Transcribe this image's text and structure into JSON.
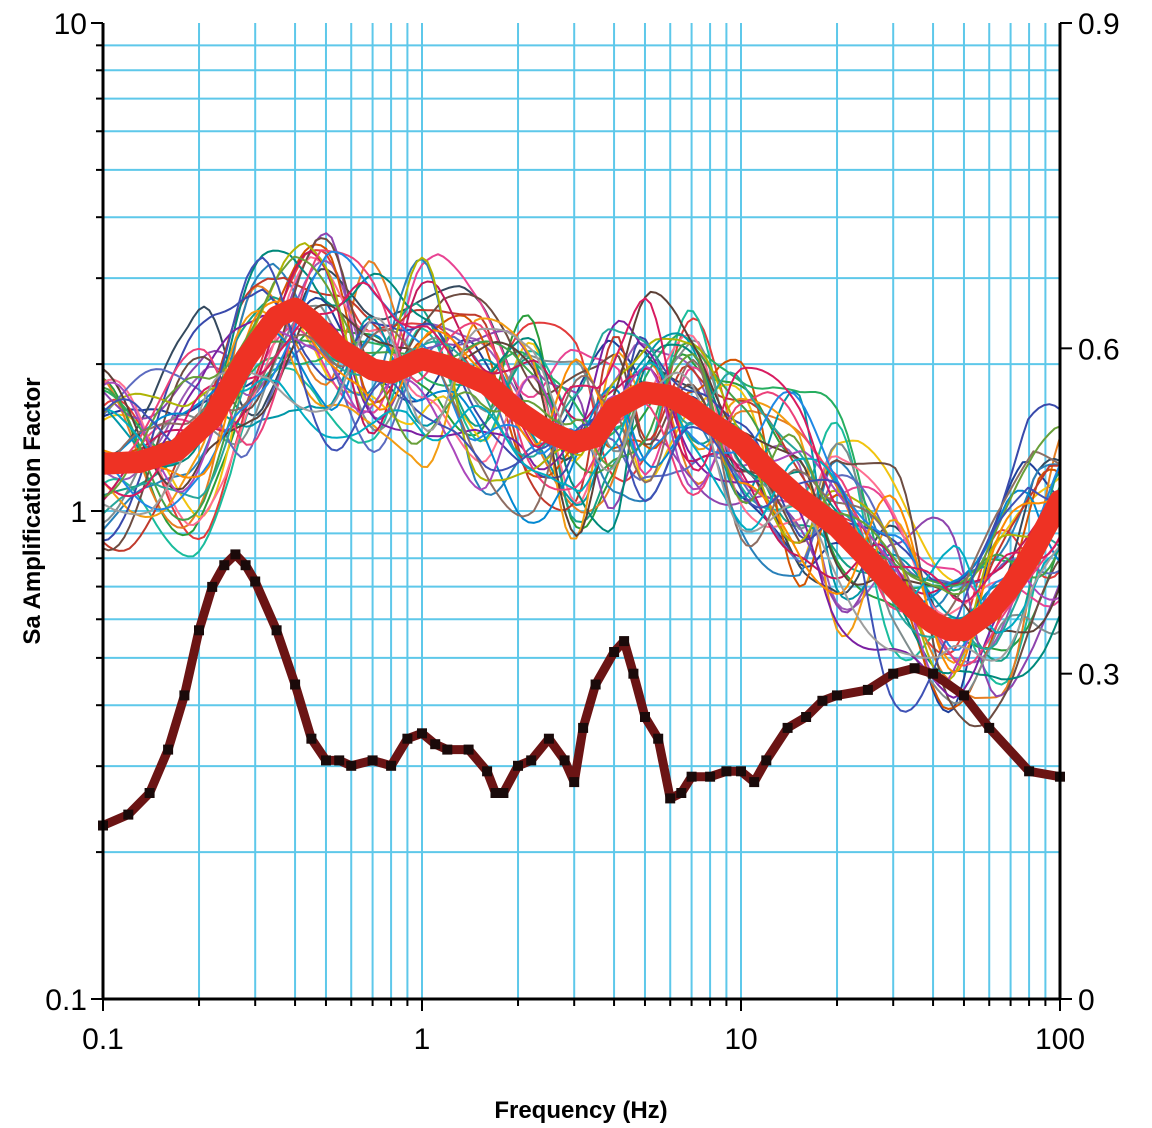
{
  "chart_data": {
    "type": "line",
    "title": "",
    "xlabel": "Frequency  (Hz)",
    "ylabel": "Sa Amplification  Factor",
    "x_scale": "log",
    "y_scale": "log",
    "xlim": [
      0.1,
      100
    ],
    "ylim": [
      0.1,
      10
    ],
    "y2lim": [
      0,
      0.9
    ],
    "grid": true,
    "legend": "none",
    "x_ticks": [
      "0.1",
      "1",
      "10",
      "100"
    ],
    "y_ticks": [
      "0.1",
      "1",
      "10"
    ],
    "y2_ticks": [
      "0",
      "0.3",
      "0.6",
      "0.9"
    ],
    "colors": {
      "grid": "#5ec8ea",
      "median": "#ee3224",
      "sigma": "#6b1414",
      "sigma_marker": "#1a0a0a",
      "axis": "#000000"
    },
    "individual_colors": [
      "#1f3f99",
      "#e23b3b",
      "#2a9d3a",
      "#9b59b6",
      "#f1c40f",
      "#1abc9c",
      "#e67e22",
      "#34495e",
      "#e84393",
      "#16a085",
      "#8e44ad",
      "#d35400",
      "#2980b9",
      "#27ae60",
      "#c0392b",
      "#7f8c8d",
      "#ff6f91",
      "#0097a7",
      "#6d4c41",
      "#5c6bc0",
      "#00897b",
      "#f39c12",
      "#3949ab",
      "#c2185b",
      "#43a047",
      "#7b1fa2",
      "#0288d1",
      "#aeb404",
      "#5d4037",
      "#ec407a",
      "#26a69a",
      "#ab47bc",
      "#1e88e5",
      "#fb8c00",
      "#8d6e63",
      "#00acc1",
      "#d81b60",
      "#689f38",
      "#3f51b5",
      "#9e9e9e"
    ],
    "individual_anchor_x": [
      0.1,
      0.2,
      0.3,
      0.5,
      0.7,
      1,
      1.5,
      2.2,
      3,
      4,
      5,
      7,
      10,
      15,
      20,
      30,
      45,
      65,
      100
    ],
    "median": {
      "axis": "left",
      "x": [
        0.1,
        0.13,
        0.17,
        0.22,
        0.28,
        0.35,
        0.4,
        0.45,
        0.55,
        0.7,
        0.8,
        1.0,
        1.2,
        1.6,
        2.0,
        2.5,
        3.0,
        3.5,
        4.0,
        5.0,
        6.0,
        7.0,
        8.0,
        10,
        12,
        15,
        20,
        25,
        30,
        35,
        40,
        45,
        50,
        60,
        70,
        80,
        100
      ],
      "y": [
        1.25,
        1.26,
        1.33,
        1.55,
        2.05,
        2.5,
        2.6,
        2.45,
        2.15,
        1.95,
        1.92,
        2.05,
        1.98,
        1.82,
        1.6,
        1.45,
        1.38,
        1.42,
        1.62,
        1.75,
        1.72,
        1.62,
        1.52,
        1.38,
        1.22,
        1.07,
        0.93,
        0.8,
        0.7,
        0.63,
        0.59,
        0.57,
        0.57,
        0.62,
        0.7,
        0.8,
        1.05
      ]
    },
    "sigma": {
      "axis": "right",
      "x": [
        0.1,
        0.12,
        0.14,
        0.16,
        0.18,
        0.2,
        0.22,
        0.24,
        0.26,
        0.28,
        0.3,
        0.35,
        0.4,
        0.45,
        0.5,
        0.55,
        0.6,
        0.7,
        0.8,
        0.9,
        1.0,
        1.1,
        1.2,
        1.4,
        1.6,
        1.7,
        1.8,
        2.0,
        2.2,
        2.5,
        2.8,
        3.0,
        3.2,
        3.5,
        4.0,
        4.3,
        4.6,
        5.0,
        5.5,
        6.0,
        6.5,
        7.0,
        8.0,
        9.0,
        10,
        11,
        12,
        14,
        16,
        18,
        20,
        25,
        30,
        35,
        40,
        50,
        60,
        80,
        100
      ],
      "y": [
        0.16,
        0.17,
        0.19,
        0.23,
        0.28,
        0.34,
        0.38,
        0.4,
        0.41,
        0.4,
        0.385,
        0.34,
        0.29,
        0.24,
        0.22,
        0.22,
        0.215,
        0.22,
        0.215,
        0.24,
        0.245,
        0.235,
        0.23,
        0.23,
        0.21,
        0.19,
        0.19,
        0.215,
        0.22,
        0.24,
        0.22,
        0.2,
        0.25,
        0.29,
        0.32,
        0.33,
        0.3,
        0.26,
        0.24,
        0.185,
        0.19,
        0.205,
        0.205,
        0.21,
        0.21,
        0.2,
        0.22,
        0.25,
        0.26,
        0.275,
        0.28,
        0.285,
        0.3,
        0.305,
        0.3,
        0.28,
        0.25,
        0.21,
        0.205
      ]
    }
  }
}
